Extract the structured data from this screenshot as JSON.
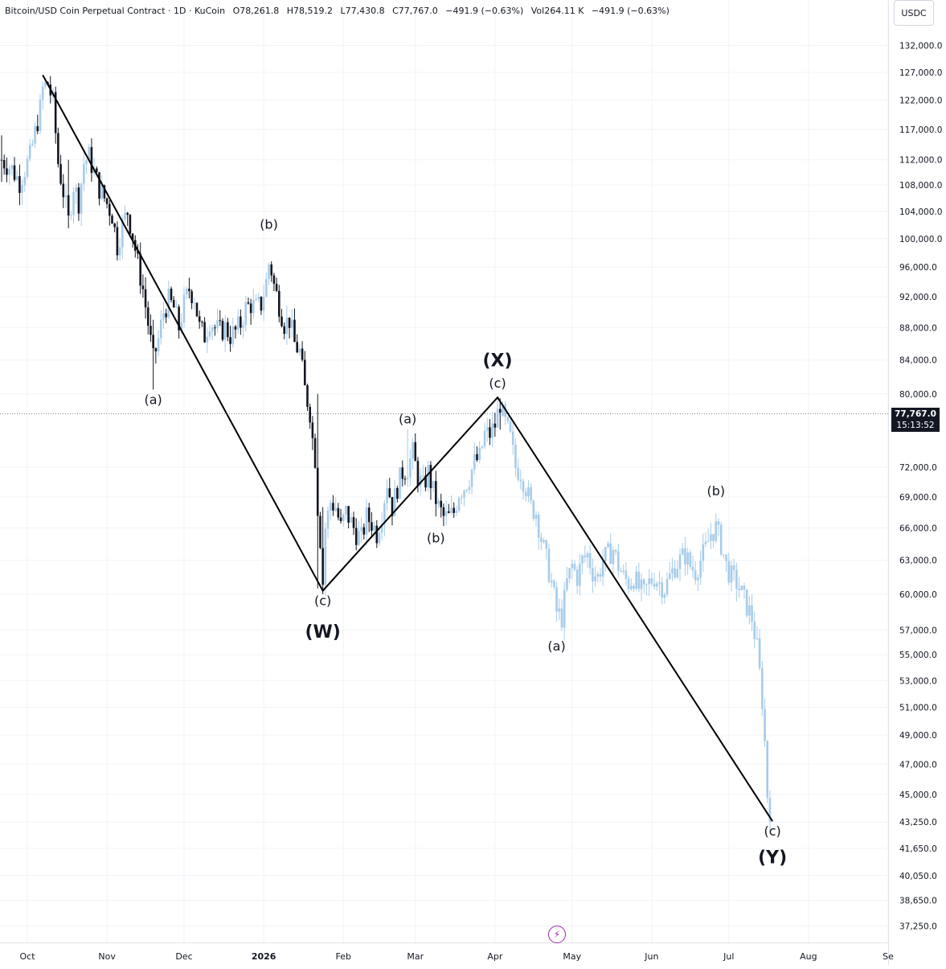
{
  "header": {
    "symbol": "Bitcoin/USD Coin Perpetual Contract · 1D · KuCoin",
    "open": "O78,261.8",
    "high": "H78,519.2",
    "low": "L77,430.8",
    "close": "C77,767.0",
    "change": "−491.9 (−0.63%)",
    "volume": "Vol264.11 K",
    "volume_change": "−491.9 (−0.63%)"
  },
  "currency_label": "USDC",
  "last_price": {
    "price": "77,767.0",
    "countdown": "15:13:52",
    "value": 77767
  },
  "icons": {
    "bolt": "lightning-bolt-icon"
  },
  "colors": {
    "historical_candle": "#131722",
    "projected_candle": "#a6cbea",
    "wave_line": "#000000",
    "price_line": "#787b86",
    "price_tag_bg": "#131722",
    "bolt": "#9c27b0"
  },
  "chart_data": {
    "type": "candlestick",
    "title": "",
    "x_axis": {
      "ticks": [
        {
          "label": "Oct",
          "x": 0
        },
        {
          "label": "Nov",
          "x": 31
        },
        {
          "label": "Dec",
          "x": 61
        },
        {
          "label": "2026",
          "x": 92
        },
        {
          "label": "Feb",
          "x": 123
        },
        {
          "label": "Mar",
          "x": 151
        },
        {
          "label": "Apr",
          "x": 182
        },
        {
          "label": "May",
          "x": 212
        },
        {
          "label": "Jun",
          "x": 243
        },
        {
          "label": "Jul",
          "x": 273
        },
        {
          "label": "Aug",
          "x": 304
        },
        {
          "label": "Se",
          "x": 335
        }
      ],
      "x_range": [
        -10,
        330
      ]
    },
    "y_axis": {
      "scale": "log",
      "ylim": [
        36000,
        140000
      ],
      "ticks": [
        132000,
        127000,
        122000,
        117000,
        112000,
        108000,
        104000,
        100000,
        96000,
        92000,
        88000,
        84000,
        80000,
        72000,
        69000,
        66000,
        63000,
        60000,
        57000,
        55000,
        53000,
        51000,
        49000,
        47000,
        45000,
        43250,
        41650,
        40050,
        38650,
        37250
      ],
      "tick_labels": [
        "132,000.0",
        "127,000.0",
        "122,000.0",
        "117,000.0",
        "112,000.0",
        "108,000.0",
        "104,000.0",
        "100,000.0",
        "96,000.0",
        "92,000.0",
        "88,000.0",
        "84,000.0",
        "80,000.0",
        "72,000.0",
        "69,000.0",
        "66,000.0",
        "63,000.0",
        "60,000.0",
        "57,000.0",
        "55,000.0",
        "53,000.0",
        "51,000.0",
        "49,000.0",
        "47,000.0",
        "45,000.0",
        "43,250.0",
        "41,650.0",
        "40,050.0",
        "38,650.0",
        "37,250.0"
      ]
    },
    "series": [
      {
        "name": "",
        "style": "historical",
        "anchors": [
          [
            -10,
            112000
          ],
          [
            -6,
            110500
          ],
          [
            -3,
            108500
          ],
          [
            1,
            112500
          ],
          [
            5,
            120500
          ],
          [
            6,
            124000
          ],
          [
            8,
            125000
          ],
          [
            10,
            121500
          ],
          [
            12,
            111500
          ],
          [
            14,
            107000
          ],
          [
            16,
            102500
          ],
          [
            18,
            108000
          ],
          [
            20,
            105500
          ],
          [
            22,
            111500
          ],
          [
            24,
            112500
          ],
          [
            26,
            110000
          ],
          [
            28,
            107500
          ],
          [
            30,
            106000
          ],
          [
            33,
            103500
          ],
          [
            35,
            99000
          ],
          [
            37,
            102000
          ],
          [
            39,
            104000
          ],
          [
            41,
            100500
          ],
          [
            43,
            96500
          ],
          [
            45,
            93000
          ],
          [
            47,
            88500
          ],
          [
            49,
            84000
          ],
          [
            51,
            86500
          ],
          [
            53,
            90000
          ],
          [
            55,
            91500
          ],
          [
            57,
            90500
          ],
          [
            59,
            88000
          ],
          [
            61,
            91000
          ],
          [
            63,
            93000
          ],
          [
            65,
            92000
          ],
          [
            67,
            88000
          ],
          [
            69,
            87000
          ],
          [
            71,
            89000
          ],
          [
            73,
            88000
          ],
          [
            75,
            87500
          ],
          [
            77,
            88000
          ],
          [
            79,
            87000
          ],
          [
            81,
            87500
          ],
          [
            83,
            88500
          ],
          [
            85,
            90500
          ],
          [
            87,
            91000
          ],
          [
            89,
            90500
          ],
          [
            91,
            91000
          ],
          [
            93,
            94000
          ],
          [
            94,
            96500
          ],
          [
            95,
            95500
          ],
          [
            96,
            93500
          ],
          [
            98,
            91000
          ],
          [
            100,
            88500
          ],
          [
            102,
            89000
          ],
          [
            104,
            86000
          ],
          [
            106,
            85000
          ],
          [
            108,
            80500
          ],
          [
            110,
            78000
          ],
          [
            111,
            75000
          ],
          [
            112,
            73000
          ],
          [
            113,
            68000
          ],
          [
            114,
            65000
          ],
          [
            115,
            61000
          ],
          [
            116,
            66000
          ],
          [
            118,
            68500
          ],
          [
            120,
            68000
          ],
          [
            122,
            66000
          ],
          [
            124,
            67500
          ],
          [
            126,
            66500
          ],
          [
            128,
            65500
          ],
          [
            130,
            65000
          ],
          [
            132,
            67000
          ],
          [
            134,
            66500
          ],
          [
            136,
            65500
          ],
          [
            138,
            67500
          ],
          [
            140,
            70500
          ],
          [
            142,
            68000
          ],
          [
            144,
            70000
          ],
          [
            146,
            71500
          ],
          [
            148,
            72000
          ],
          [
            150,
            73500
          ],
          [
            152,
            71000
          ],
          [
            154,
            70000
          ],
          [
            156,
            71500
          ],
          [
            158,
            69500
          ],
          [
            160,
            68000
          ],
          [
            162,
            67000
          ],
          [
            164,
            67000
          ],
          [
            166,
            67500
          ],
          [
            168,
            69500
          ],
          [
            170,
            70000
          ],
          [
            172,
            71000
          ],
          [
            174,
            72500
          ],
          [
            176,
            73000
          ],
          [
            178,
            75500
          ],
          [
            180,
            75500
          ],
          [
            182,
            76500
          ],
          [
            184,
            79000
          ]
        ],
        "high_low_ranges": [
          [
            -10,
            112000,
            116000,
            108500
          ],
          [
            16,
            102500,
            112000,
            101500
          ],
          [
            49,
            84000,
            89000,
            80500
          ],
          [
            113,
            68000,
            80000,
            60500
          ],
          [
            115,
            61000,
            68000,
            60000
          ],
          [
            148,
            72000,
            76000,
            70000
          ],
          [
            184,
            79000,
            79500,
            76000
          ]
        ]
      },
      {
        "name": "",
        "style": "projection",
        "anchors": [
          [
            185,
            77500
          ],
          [
            188,
            75000
          ],
          [
            190,
            72000
          ],
          [
            192,
            71500
          ],
          [
            194,
            70000
          ],
          [
            196,
            68000
          ],
          [
            198,
            67500
          ],
          [
            200,
            65000
          ],
          [
            202,
            63000
          ],
          [
            204,
            61000
          ],
          [
            206,
            58500
          ],
          [
            208,
            58000
          ],
          [
            210,
            61000
          ],
          [
            212,
            62500
          ],
          [
            214,
            61500
          ],
          [
            216,
            63000
          ],
          [
            218,
            63500
          ],
          [
            220,
            62000
          ],
          [
            222,
            61500
          ],
          [
            224,
            63000
          ],
          [
            226,
            63500
          ],
          [
            228,
            64000
          ],
          [
            230,
            62500
          ],
          [
            232,
            61500
          ],
          [
            234,
            61000
          ],
          [
            236,
            61500
          ],
          [
            238,
            60500
          ],
          [
            240,
            60000
          ],
          [
            242,
            61000
          ],
          [
            244,
            61500
          ],
          [
            246,
            61000
          ],
          [
            248,
            60500
          ],
          [
            250,
            61500
          ],
          [
            252,
            62500
          ],
          [
            254,
            63000
          ],
          [
            256,
            63500
          ],
          [
            258,
            62500
          ],
          [
            260,
            62000
          ],
          [
            262,
            63000
          ],
          [
            264,
            64000
          ],
          [
            266,
            65500
          ],
          [
            268,
            66000
          ],
          [
            270,
            64500
          ],
          [
            272,
            62500
          ],
          [
            274,
            61500
          ],
          [
            276,
            61000
          ],
          [
            278,
            60000
          ],
          [
            280,
            59000
          ],
          [
            282,
            58000
          ],
          [
            284,
            55500
          ],
          [
            285,
            53500
          ],
          [
            286,
            51500
          ],
          [
            287,
            48500
          ],
          [
            288,
            45000
          ],
          [
            289,
            44000
          ]
        ]
      }
    ],
    "wave_lines": [
      {
        "points": [
          [
            6,
            126500
          ],
          [
            115,
            60300
          ],
          [
            183,
            79600
          ],
          [
            290,
            43300
          ]
        ]
      }
    ],
    "annotations": [
      {
        "text": "(a)",
        "x": 49,
        "y": 80500,
        "position": "below",
        "size": "small"
      },
      {
        "text": "(b)",
        "x": 94,
        "y": 100500,
        "position": "above",
        "size": "small"
      },
      {
        "text": "(c)",
        "x": 115,
        "y": 60300,
        "position": "below",
        "size": "small"
      },
      {
        "text": "(W)",
        "x": 115,
        "y": 58100,
        "position": "below",
        "size": "large"
      },
      {
        "text": "(a)",
        "x": 148,
        "y": 76000,
        "position": "above",
        "size": "small"
      },
      {
        "text": "(b)",
        "x": 159,
        "y": 66000,
        "position": "below",
        "size": "small"
      },
      {
        "text": "(c)",
        "x": 183,
        "y": 80000,
        "position": "above",
        "size": "small"
      },
      {
        "text": "(X)",
        "x": 183,
        "y": 82500,
        "position": "above",
        "size": "large"
      },
      {
        "text": "(a)",
        "x": 206,
        "y": 56500,
        "position": "below",
        "size": "small"
      },
      {
        "text": "(b)",
        "x": 268,
        "y": 68500,
        "position": "above",
        "size": "small"
      },
      {
        "text": "(c)",
        "x": 290,
        "y": 43300,
        "position": "below",
        "size": "small"
      },
      {
        "text": "(Y)",
        "x": 290,
        "y": 42000,
        "position": "below",
        "size": "large"
      }
    ],
    "last_price_line": 77767,
    "grid": true,
    "legend": "none"
  }
}
